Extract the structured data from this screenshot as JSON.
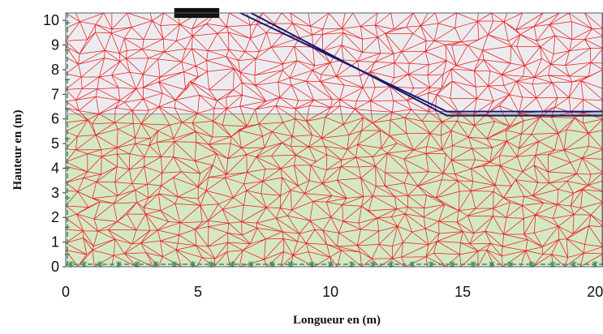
{
  "figure": {
    "xlabel": "Longueur en (m)",
    "ylabel": "Hauteur en (m)"
  },
  "axes": {
    "xlim": [
      0,
      20.3
    ],
    "ylim": [
      0,
      10.3
    ],
    "x_ticks": [
      0,
      5,
      10,
      15,
      20
    ],
    "y_ticks": [
      0,
      1,
      2,
      3,
      4,
      5,
      6,
      7,
      8,
      9,
      10
    ]
  },
  "layers": [
    {
      "name": "upper-soil",
      "y_range": [
        6.2,
        10.3
      ],
      "color": "#ececf0"
    },
    {
      "name": "lower-soil",
      "y_range": [
        0,
        6.2
      ],
      "color": "#d4e8c4"
    }
  ],
  "mesh": {
    "color": "#e81e1e"
  },
  "slope_surface": {
    "color": "#16196e",
    "points": [
      [
        6.6,
        10.3
      ],
      [
        14.4,
        6.3
      ],
      [
        20.3,
        6.3
      ]
    ],
    "offset": 0.2
  },
  "footing": {
    "x_range": [
      4.1,
      5.8
    ],
    "y_range": [
      10.1,
      10.5
    ],
    "color": "#111111"
  },
  "boundary": {
    "color": "#3a8f5c",
    "bottom_marker_x": [
      0.2,
      0.7,
      1.3,
      2.0,
      2.7,
      3.4,
      4.1,
      4.8,
      5.5,
      6.3,
      7.0,
      7.8,
      8.5,
      9.3,
      10.0,
      10.8,
      11.6,
      12.3,
      13.1,
      13.8,
      14.6,
      15.4,
      16.1,
      16.8,
      17.6,
      18.4,
      19.2,
      20.0
    ],
    "left_marker_y": [
      0.5,
      1.6,
      2.8,
      4.0,
      5.2,
      6.4,
      7.6,
      8.8,
      9.9
    ]
  }
}
